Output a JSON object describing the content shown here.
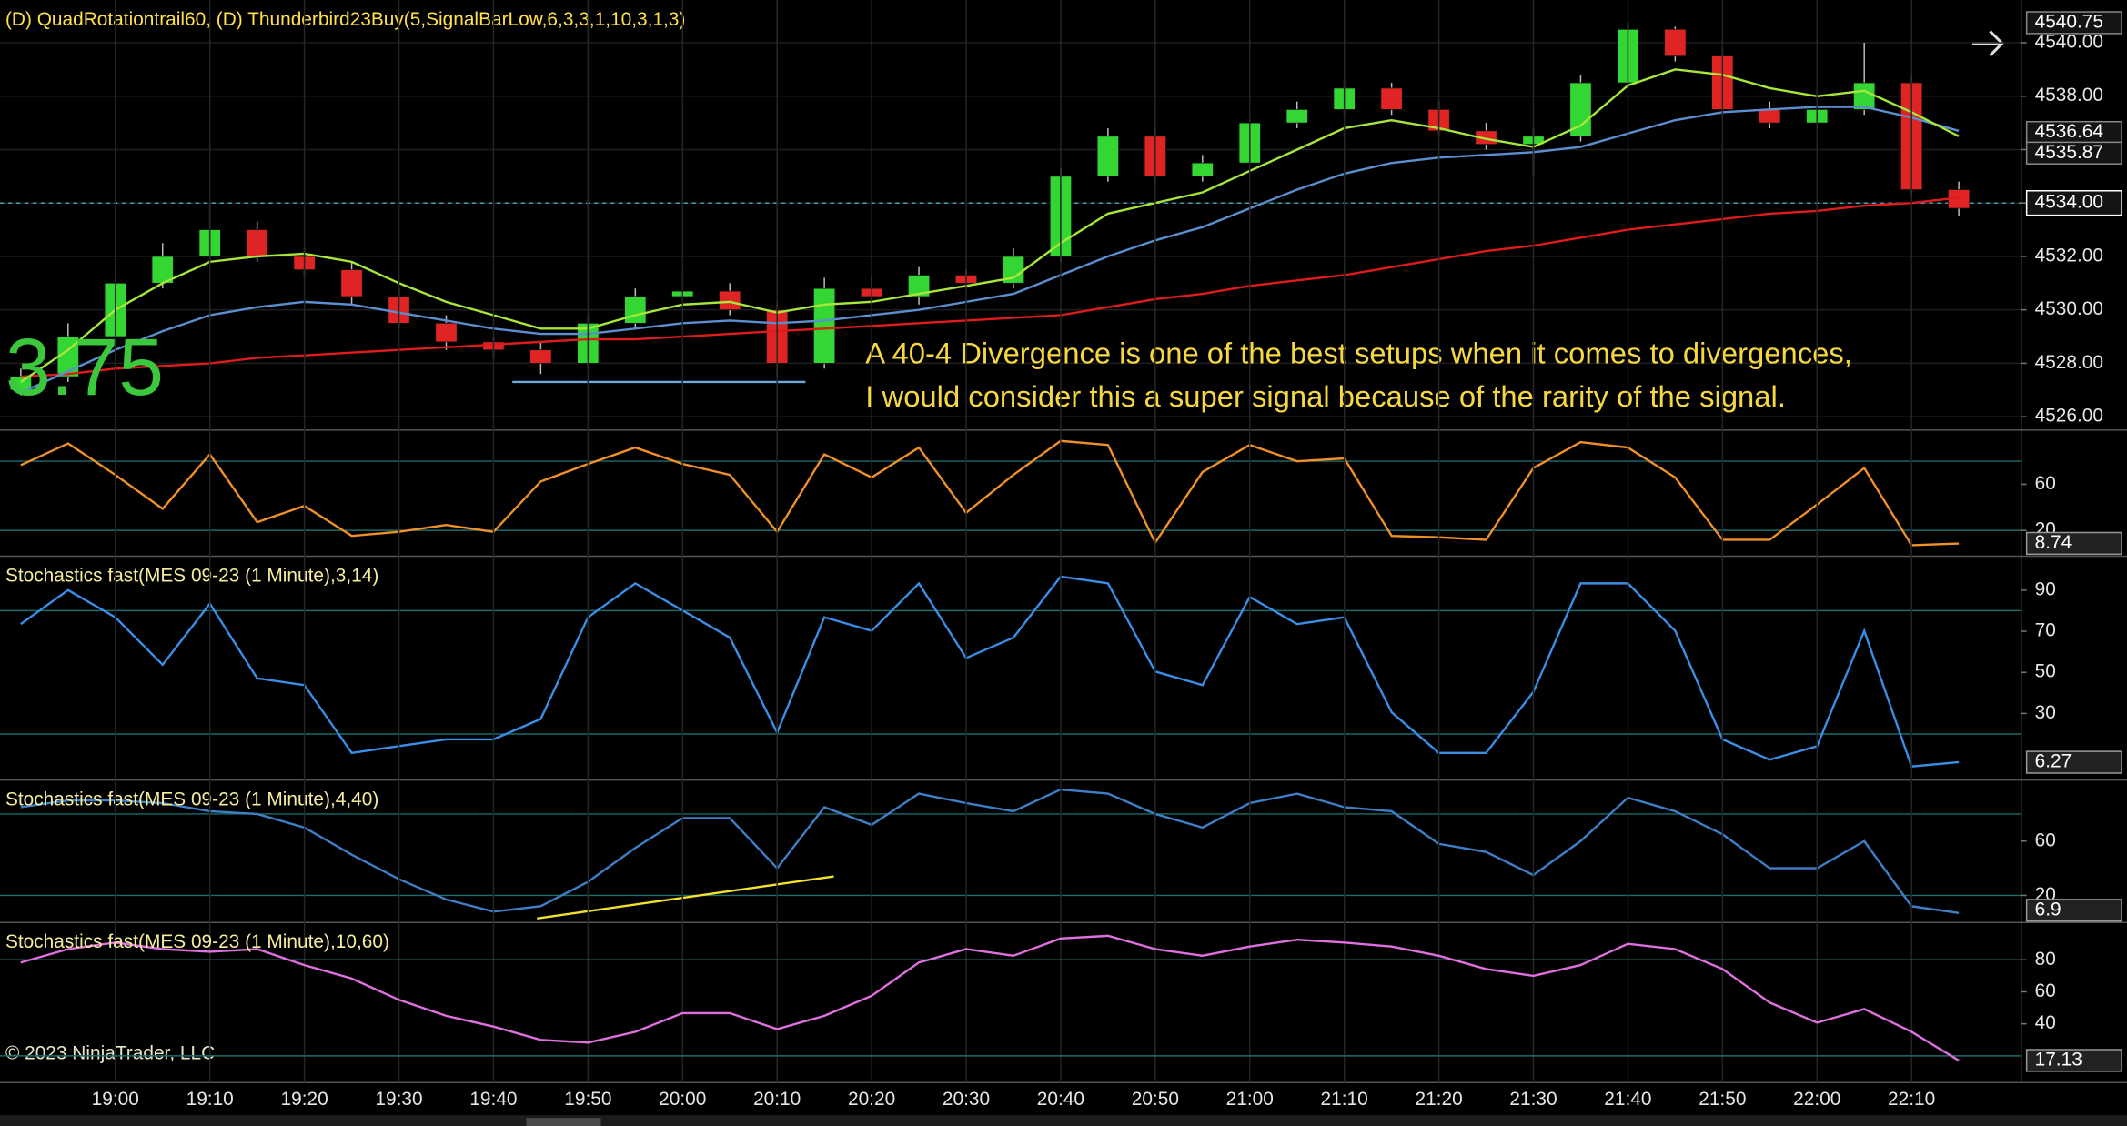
{
  "chart_data": [
    {
      "type": "candlestick",
      "title": "(D) QuadRotationtrail60, (D) Thunderbird23Buy(5,SignalBarLow,6,3,3,1,10,3,1,3)",
      "annotations": [
        "A 40-4 Divergence is one of the best setups when it comes to divergences,",
        "I would consider this a super signal because of the rarity of the signal."
      ],
      "overlay_text": "3.75",
      "xlim": [
        1127.8,
        1341.6
      ],
      "ylim": [
        4525.5,
        4541.6
      ],
      "yticks": [
        {
          "value": 4526,
          "label": "4526.00"
        },
        {
          "value": 4528,
          "label": "4528.00"
        },
        {
          "value": 4530,
          "label": "4530.00"
        },
        {
          "value": 4532,
          "label": "4532.00"
        },
        {
          "value": 4534,
          "label": "4534.00"
        },
        {
          "value": 4536,
          "label": "4536.00"
        },
        {
          "value": 4538,
          "label": "4538.00"
        },
        {
          "value": 4540,
          "label": "4540.00"
        }
      ],
      "x": [
        1130,
        1135,
        1140,
        1145,
        1150,
        1155,
        1160,
        1165,
        1170,
        1175,
        1180,
        1185,
        1190,
        1195,
        1200,
        1205,
        1210,
        1215,
        1220,
        1225,
        1230,
        1235,
        1240,
        1245,
        1250,
        1255,
        1260,
        1265,
        1270,
        1275,
        1280,
        1285,
        1290,
        1295,
        1300,
        1305,
        1310,
        1315,
        1320,
        1325,
        1330,
        1335
      ],
      "open": [
        4527,
        4527.5,
        4529,
        4531,
        4532,
        4533,
        4532,
        4531.5,
        4530.5,
        4529.5,
        4528.8,
        4528.5,
        4528,
        4529.5,
        4530.5,
        4530.7,
        4530,
        4528,
        4530.8,
        4530.5,
        4531.3,
        4531,
        4532,
        4535,
        4536.5,
        4535,
        4535.5,
        4537,
        4537.5,
        4538.3,
        4537.5,
        4536.7,
        4536.2,
        4536.5,
        4538.5,
        4540.5,
        4539.5,
        4537.5,
        4537,
        4537.5,
        4538.5,
        4534.5
      ],
      "high": [
        4527.8,
        4529.5,
        4531.5,
        4532.5,
        4534,
        4533.3,
        4532.3,
        4531.8,
        4530.8,
        4529.8,
        4529,
        4528.8,
        4529.8,
        4530.8,
        4531.3,
        4531,
        4530.3,
        4531.2,
        4531.3,
        4531.6,
        4531.5,
        4532.3,
        4535.3,
        4536.8,
        4536.8,
        4535.8,
        4537.3,
        4537.8,
        4538.6,
        4538.5,
        4537.8,
        4537,
        4536.8,
        4538.8,
        4540.75,
        4540.6,
        4539.8,
        4537.8,
        4537.8,
        4540,
        4538.8,
        4534.8
      ],
      "low": [
        4526.8,
        4527.3,
        4528.8,
        4530.8,
        4531.8,
        4531.8,
        4531.2,
        4530.2,
        4529.3,
        4528.5,
        4528.2,
        4527.6,
        4527.8,
        4529.3,
        4530.2,
        4529.8,
        4527.5,
        4527.8,
        4530.2,
        4530.2,
        4530.8,
        4530.8,
        4531.8,
        4534.8,
        4534.8,
        4534.8,
        4535.3,
        4536.8,
        4537.3,
        4537.3,
        4536.5,
        4536,
        4535,
        4536.3,
        4538.3,
        4539.3,
        4537.3,
        4536.8,
        4536.8,
        4537.3,
        4534.3,
        4533.5
      ],
      "close": [
        4527.5,
        4529,
        4531,
        4532,
        4533,
        4532,
        4531.5,
        4530.5,
        4529.5,
        4528.8,
        4528.5,
        4528,
        4529.5,
        4530.5,
        4530.7,
        4530,
        4528,
        4530.8,
        4530.5,
        4531.3,
        4531,
        4532,
        4535,
        4536.5,
        4535,
        4535.5,
        4537,
        4537.5,
        4538.3,
        4537.5,
        4536.7,
        4536.2,
        4536.5,
        4538.5,
        4540.5,
        4539.5,
        4537.5,
        4537,
        4537.5,
        4538.5,
        4534.5,
        4533.8
      ],
      "up_color": "#33d633",
      "down_color": "#e02424",
      "series": [
        {
          "color": "#e01b1b",
          "values": [
            4527.5,
            4527.6,
            4527.8,
            4527.9,
            4528.0,
            4528.2,
            4528.3,
            4528.4,
            4528.5,
            4528.6,
            4528.7,
            4528.8,
            4528.9,
            4528.9,
            4529.0,
            4529.1,
            4529.2,
            4529.3,
            4529.4,
            4529.5,
            4529.6,
            4529.7,
            4529.8,
            4530.1,
            4530.4,
            4530.6,
            4530.9,
            4531.1,
            4531.3,
            4531.6,
            4531.9,
            4532.2,
            4532.4,
            4532.7,
            4533.0,
            4533.2,
            4533.4,
            4533.6,
            4533.7,
            4533.9,
            4534.0,
            4534.2
          ]
        },
        {
          "color": "#5b8fd0",
          "values": [
            4526.9,
            4527.7,
            4528.5,
            4529.2,
            4529.8,
            4530.1,
            4530.3,
            4530.2,
            4529.9,
            4529.6,
            4529.3,
            4529.1,
            4529.1,
            4529.3,
            4529.5,
            4529.6,
            4529.5,
            4529.6,
            4529.8,
            4530,
            4530.3,
            4530.6,
            4531.3,
            4532,
            4532.6,
            4533.1,
            4533.8,
            4534.5,
            4535.1,
            4535.5,
            4535.7,
            4535.8,
            4535.9,
            4536.1,
            4536.6,
            4537.1,
            4537.4,
            4537.5,
            4537.6,
            4537.6,
            4537.2,
            4536.7
          ]
        },
        {
          "color": "#a8e63c",
          "values": [
            4527.3,
            4528.5,
            4530,
            4531,
            4531.8,
            4532,
            4532.1,
            4531.8,
            4531,
            4530.3,
            4529.8,
            4529.3,
            4529.3,
            4529.8,
            4530.2,
            4530.3,
            4529.9,
            4530.2,
            4530.3,
            4530.6,
            4530.9,
            4531.2,
            4532.5,
            4533.6,
            4534,
            4534.4,
            4535.2,
            4536,
            4536.8,
            4537.1,
            4536.8,
            4536.4,
            4536.1,
            4536.9,
            4538.4,
            4539,
            4538.8,
            4538.3,
            4538,
            4538.2,
            4537.4,
            4536.5
          ]
        }
      ],
      "lines": [
        {
          "color": "#6fa8dc",
          "x": [
            1182,
            1213
          ],
          "values": [
            4527.3,
            4527.3
          ]
        }
      ],
      "price_markers": [
        4540.75,
        4536.64,
        4535.87
      ],
      "current_price": {
        "value": 4534,
        "label": "4534.00"
      }
    },
    {
      "type": "line",
      "xlim": [
        1127.8,
        1341.6
      ],
      "ylim": [
        -2.4,
        107
      ],
      "yticks": [
        60,
        20
      ],
      "levels": [
        80,
        20
      ],
      "x": [
        1130,
        1135,
        1140,
        1145,
        1150,
        1155,
        1160,
        1165,
        1170,
        1175,
        1180,
        1185,
        1190,
        1195,
        1200,
        1205,
        1210,
        1215,
        1220,
        1225,
        1230,
        1235,
        1240,
        1245,
        1250,
        1255,
        1260,
        1265,
        1270,
        1275,
        1280,
        1285,
        1290,
        1295,
        1300,
        1305,
        1310,
        1315,
        1320,
        1325,
        1330,
        1335
      ],
      "series": [
        {
          "color": "#f0902a",
          "values": [
            76.5,
            95.3,
            68.2,
            38.8,
            85.9,
            27.1,
            41.2,
            15.3,
            18.8,
            24.7,
            18.8,
            62.4,
            77.6,
            91.8,
            77.6,
            68.2,
            18.8,
            85.9,
            65.9,
            91.8,
            35.3,
            68.2,
            97.6,
            94.1,
            9.4,
            70.6,
            94.1,
            80,
            82.4,
            15.3,
            14.1,
            11.8,
            74.1,
            96.5,
            91.8,
            65.9,
            11.8,
            11.8,
            42.4,
            74.1,
            7.1,
            8.7
          ]
        }
      ],
      "marker": 8.74
    },
    {
      "type": "line",
      "title": "Stochastics fast(MES 09-23 (1 Minute),3,14)",
      "xlim": [
        1127.8,
        1341.6
      ],
      "ylim": [
        -2.4,
        106.5
      ],
      "yticks": [
        90,
        70,
        50,
        30
      ],
      "levels": [
        80,
        20
      ],
      "x": [
        1130,
        1135,
        1140,
        1145,
        1150,
        1155,
        1160,
        1165,
        1170,
        1175,
        1180,
        1185,
        1190,
        1195,
        1200,
        1205,
        1210,
        1215,
        1220,
        1225,
        1230,
        1235,
        1240,
        1245,
        1250,
        1255,
        1260,
        1265,
        1270,
        1275,
        1280,
        1285,
        1290,
        1295,
        1300,
        1305,
        1310,
        1315,
        1320,
        1325,
        1330,
        1335
      ],
      "series": [
        {
          "color": "#3a8ee6",
          "values": [
            73.5,
            90,
            76.8,
            53.7,
            83.4,
            47.1,
            43.8,
            10.8,
            14.1,
            17.4,
            17.4,
            27.3,
            76.8,
            93.3,
            80.1,
            66.9,
            20.7,
            76.8,
            70.2,
            93.3,
            57,
            66.9,
            96.6,
            93.3,
            50.4,
            43.8,
            86.7,
            73.5,
            76.8,
            30.6,
            10.8,
            10.8,
            40.5,
            93.3,
            93.3,
            70.2,
            17.4,
            7.5,
            14.1,
            70.2,
            4.2,
            6.3
          ]
        }
      ],
      "marker": 6.27
    },
    {
      "type": "line",
      "title": "Stochastics fast(MES 09-23 (1 Minute),4,40)",
      "xlim": [
        1127.8,
        1341.6
      ],
      "ylim": [
        0,
        105
      ],
      "yticks": [
        60,
        20
      ],
      "levels": [
        80,
        20
      ],
      "x": [
        1130,
        1135,
        1140,
        1145,
        1150,
        1155,
        1160,
        1165,
        1170,
        1175,
        1180,
        1185,
        1190,
        1195,
        1200,
        1205,
        1210,
        1215,
        1220,
        1225,
        1230,
        1235,
        1240,
        1245,
        1250,
        1255,
        1260,
        1265,
        1270,
        1275,
        1280,
        1285,
        1290,
        1295,
        1300,
        1305,
        1310,
        1315,
        1320,
        1325,
        1330,
        1335
      ],
      "series": [
        {
          "color": "#3f7fc8",
          "values": [
            85,
            90,
            90,
            88,
            82,
            80,
            70,
            50,
            32,
            17,
            8,
            12,
            30,
            55,
            77,
            77,
            40,
            85,
            72,
            95,
            88,
            82,
            98,
            95,
            80,
            70,
            88,
            95,
            85,
            82,
            58,
            52,
            35,
            60,
            92,
            82,
            65,
            40,
            40,
            60,
            12,
            7
          ]
        }
      ],
      "lines": [
        {
          "color": "#f2e230",
          "x": [
            1184.6,
            1216
          ],
          "values": [
            3,
            34
          ]
        }
      ],
      "marker": 6.9
    },
    {
      "type": "line",
      "title": "Stochastics fast(MES 09-23 (1 Minute),10,60)",
      "xlim": [
        1127.8,
        1341.6
      ],
      "ylim": [
        3.3,
        103.3
      ],
      "yticks": [
        80,
        60,
        40
      ],
      "levels": [
        80,
        20
      ],
      "x": [
        1130,
        1135,
        1140,
        1145,
        1150,
        1155,
        1160,
        1165,
        1170,
        1175,
        1180,
        1185,
        1190,
        1195,
        1200,
        1205,
        1210,
        1215,
        1220,
        1225,
        1230,
        1235,
        1240,
        1245,
        1250,
        1255,
        1260,
        1265,
        1270,
        1275,
        1280,
        1285,
        1290,
        1295,
        1300,
        1305,
        1310,
        1315,
        1320,
        1325,
        1330,
        1335
      ],
      "series": [
        {
          "color": "#e070e0",
          "values": [
            78.3,
            86.7,
            90.8,
            86.7,
            85,
            86.7,
            76.7,
            68.3,
            55,
            45,
            38.3,
            30,
            28.3,
            35,
            46.7,
            46.7,
            36.7,
            45,
            57.5,
            78.3,
            86.7,
            82.5,
            93.3,
            95,
            86.7,
            82.5,
            88.3,
            92.5,
            90.8,
            88.3,
            82.5,
            74.2,
            70,
            76.7,
            90,
            86.7,
            74.2,
            53.3,
            40.8,
            49.2,
            35,
            17.1
          ]
        }
      ],
      "marker": 17.13,
      "xticks": [
        {
          "value": 1140,
          "label": "19:00"
        },
        {
          "value": 1150,
          "label": "19:10"
        },
        {
          "value": 1160,
          "label": "19:20"
        },
        {
          "value": 1170,
          "label": "19:30"
        },
        {
          "value": 1180,
          "label": "19:40"
        },
        {
          "value": 1190,
          "label": "19:50"
        },
        {
          "value": 1200,
          "label": "20:00"
        },
        {
          "value": 1210,
          "label": "20:10"
        },
        {
          "value": 1220,
          "label": "20:20"
        },
        {
          "value": 1230,
          "label": "20:30"
        },
        {
          "value": 1240,
          "label": "20:40"
        },
        {
          "value": 1250,
          "label": "20:50"
        },
        {
          "value": 1260,
          "label": "21:00"
        },
        {
          "value": 1270,
          "label": "21:10"
        },
        {
          "value": 1280,
          "label": "21:20"
        },
        {
          "value": 1290,
          "label": "21:30"
        },
        {
          "value": 1300,
          "label": "21:40"
        },
        {
          "value": 1310,
          "label": "21:50"
        },
        {
          "value": 1320,
          "label": "22:00"
        },
        {
          "value": 1330,
          "label": "22:10"
        }
      ]
    }
  ],
  "copyright": "© 2023 NinjaTrader, LLC"
}
